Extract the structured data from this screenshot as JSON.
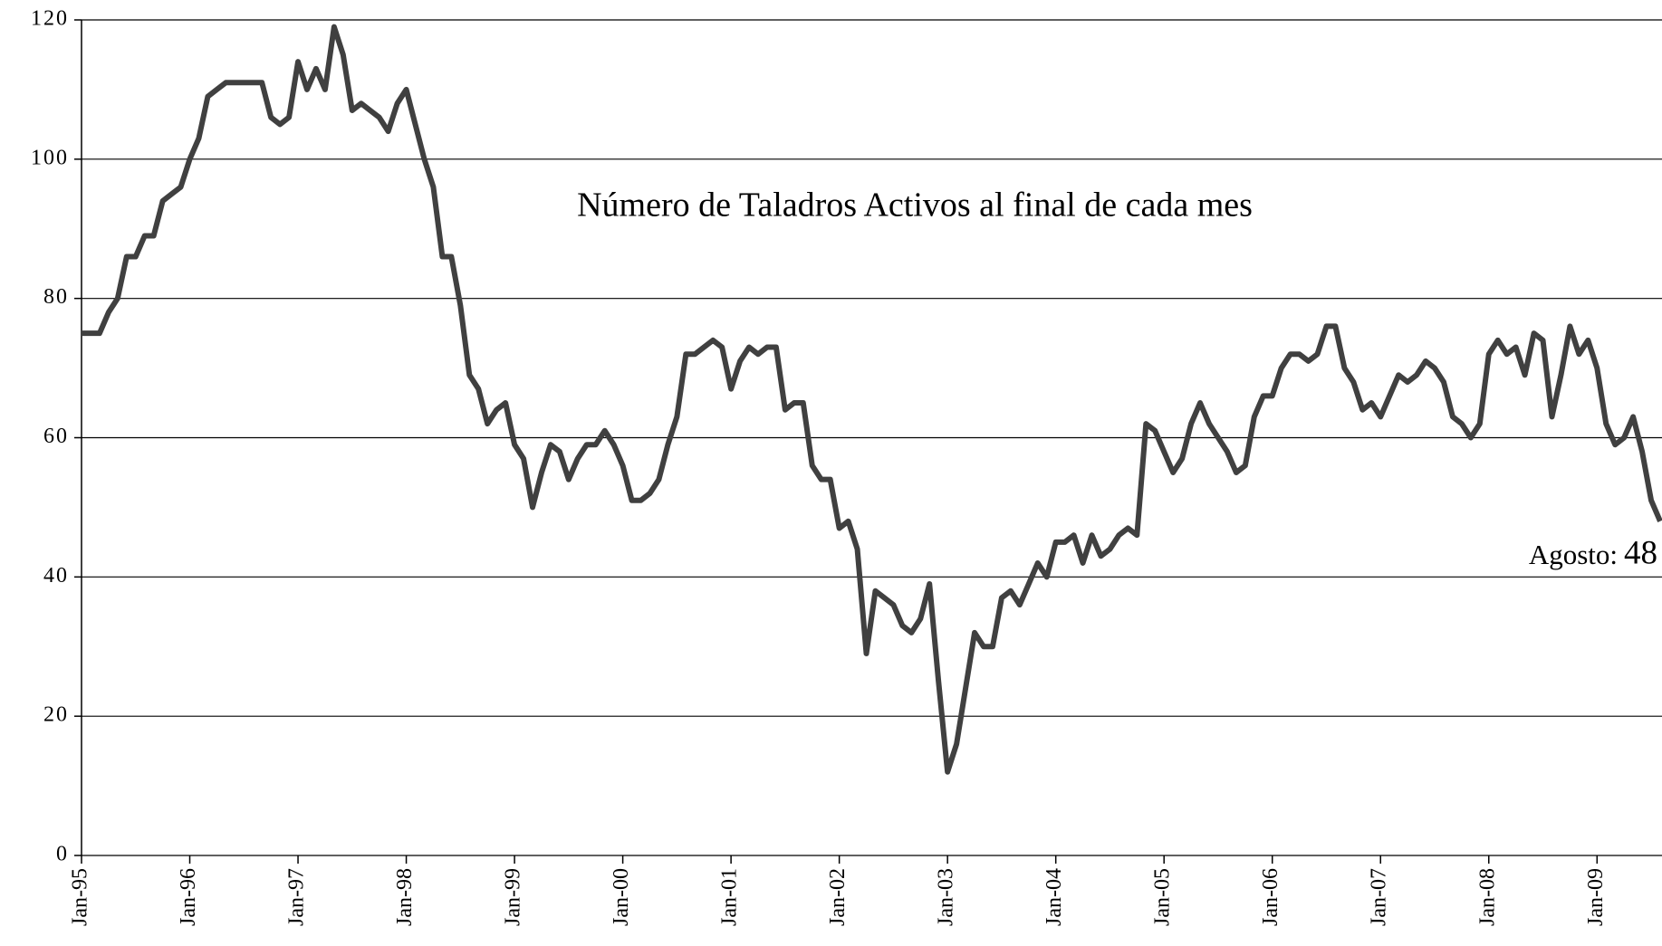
{
  "chart_data": {
    "type": "line",
    "title": "Número de Taladros Activos al final de cada mes",
    "annotation": "Agosto:",
    "categories": [
      "Jan-95",
      null,
      null,
      null,
      null,
      null,
      null,
      null,
      null,
      null,
      null,
      null,
      "Jan-96",
      null,
      null,
      null,
      null,
      null,
      null,
      null,
      null,
      null,
      null,
      null,
      "Jan-97",
      null,
      null,
      null,
      null,
      null,
      null,
      null,
      null,
      null,
      null,
      null,
      "Jan-98",
      null,
      null,
      null,
      null,
      null,
      null,
      null,
      null,
      null,
      null,
      null,
      "Jan-99",
      null,
      null,
      null,
      null,
      null,
      null,
      null,
      null,
      null,
      null,
      null,
      "Jan-00",
      null,
      null,
      null,
      null,
      null,
      null,
      null,
      null,
      null,
      null,
      null,
      "Jan-01",
      null,
      null,
      null,
      null,
      null,
      null,
      null,
      null,
      null,
      null,
      null,
      "Jan-02",
      null,
      null,
      null,
      null,
      null,
      null,
      null,
      null,
      null,
      null,
      null,
      "Jan-03",
      null,
      null,
      null,
      null,
      null,
      null,
      null,
      null,
      null,
      null,
      null,
      "Jan-04",
      null,
      null,
      null,
      null,
      null,
      null,
      null,
      null,
      null,
      null,
      null,
      "Jan-05",
      null,
      null,
      null,
      null,
      null,
      null,
      null,
      null,
      null,
      null,
      null,
      "Jan-06",
      null,
      null,
      null,
      null,
      null,
      null,
      null,
      null,
      null,
      null,
      null,
      "Jan-07",
      null,
      null,
      null,
      null,
      null,
      null,
      null,
      null,
      null,
      null,
      null,
      "Jan-08",
      null,
      null,
      null,
      null,
      null,
      null,
      null,
      null,
      null,
      null,
      null,
      "Jan-09",
      null,
      null,
      null,
      null,
      null,
      null,
      null
    ],
    "values": [
      75,
      75,
      75,
      78,
      80,
      86,
      86,
      89,
      89,
      94,
      95,
      96,
      100,
      103,
      109,
      110,
      111,
      111,
      111,
      111,
      111,
      106,
      105,
      106,
      114,
      110,
      113,
      110,
      119,
      115,
      107,
      108,
      107,
      106,
      104,
      108,
      110,
      105,
      100,
      96,
      86,
      86,
      79,
      69,
      67,
      62,
      64,
      65,
      59,
      57,
      50,
      55,
      59,
      58,
      54,
      57,
      59,
      59,
      61,
      59,
      56,
      51,
      51,
      52,
      54,
      59,
      63,
      72,
      72,
      73,
      74,
      73,
      67,
      71,
      73,
      72,
      73,
      73,
      64,
      65,
      65,
      56,
      54,
      54,
      47,
      48,
      44,
      29,
      38,
      37,
      36,
      33,
      32,
      34,
      39,
      25,
      12,
      16,
      24,
      32,
      30,
      30,
      37,
      38,
      36,
      39,
      42,
      40,
      45,
      45,
      46,
      42,
      46,
      43,
      44,
      46,
      47,
      46,
      62,
      61,
      58,
      55,
      57,
      62,
      65,
      62,
      60,
      58,
      55,
      56,
      63,
      66,
      66,
      70,
      72,
      72,
      71,
      72,
      76,
      76,
      70,
      68,
      64,
      65,
      63,
      66,
      69,
      68,
      69,
      71,
      70,
      68,
      63,
      62,
      60,
      62,
      72,
      74,
      72,
      73,
      69,
      75,
      74,
      63,
      69,
      76,
      72,
      74,
      70,
      62,
      59,
      60,
      63,
      58,
      51,
      48
    ],
    "color": "#404040",
    "ylim": [
      0,
      120
    ],
    "yticks": [
      0,
      20,
      40,
      60,
      80,
      100,
      120
    ],
    "grid": true
  }
}
